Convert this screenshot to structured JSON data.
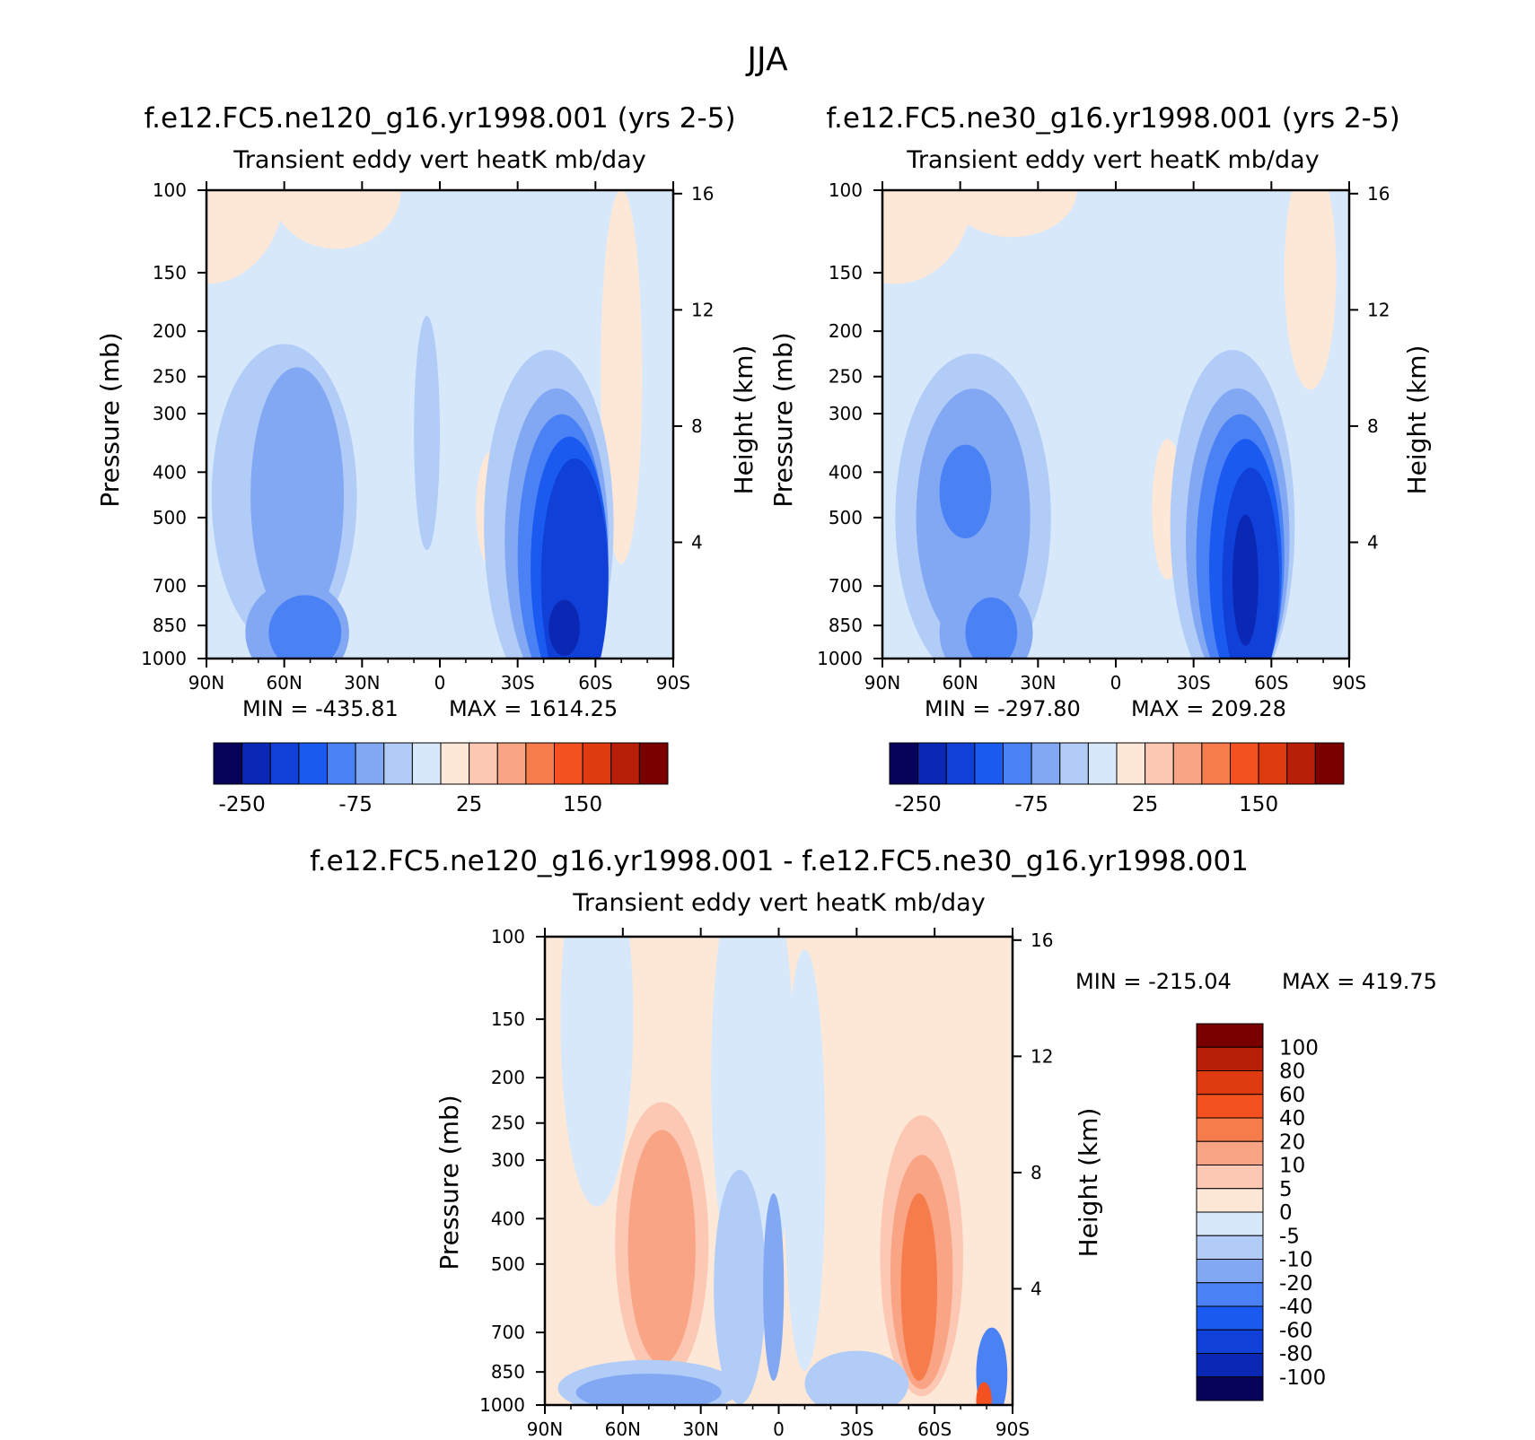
{
  "figure_title": "JJA",
  "colors": {
    "scale16": [
      "#08035a",
      "#0a28b4",
      "#1040d8",
      "#1a5af0",
      "#4a82f5",
      "#82a8f4",
      "#b2ccf8",
      "#d8e8fb",
      "#fde8d8",
      "#fcc8b4",
      "#f9a484",
      "#f77c4c",
      "#f55020",
      "#e03a10",
      "#b81e08",
      "#7a0000"
    ],
    "scale16_diff": [
      "#08035a",
      "#0a28b4",
      "#1040d8",
      "#1a5af0",
      "#4a82f5",
      "#82a8f4",
      "#b2ccf8",
      "#d8e8fb",
      "#fde8d8",
      "#fcc8b4",
      "#f9a484",
      "#f77c4c",
      "#f55020",
      "#e03a10",
      "#b81e08",
      "#7a0000"
    ]
  },
  "chart_data": [
    {
      "type": "heatmap",
      "id": "ne120",
      "title": "f.e12.FC5.ne120_g16.yr1998.001 (yrs 2-5)",
      "subtitle": "Transient eddy vert heatK mb/day",
      "ylabel": "Pressure (mb)",
      "ylabel_right": "Height (km)",
      "x_ticks": [
        "90N",
        "60N",
        "30N",
        "0",
        "30S",
        "60S",
        "90S"
      ],
      "x_range": [
        90,
        -90
      ],
      "y_range": [
        1000,
        100
      ],
      "y_scale": "log",
      "y_ticks": [
        "100",
        "150",
        "200",
        "250",
        "300",
        "400",
        "500",
        "700",
        "850",
        "1000"
      ],
      "y_tick_values": [
        100,
        150,
        200,
        250,
        300,
        400,
        500,
        700,
        850,
        1000
      ],
      "height_ticks": [
        "16",
        "12",
        "8",
        "4"
      ],
      "height_tick_values": [
        16,
        12,
        8,
        4
      ],
      "min_label": "MIN = -435.81",
      "max_label": "MAX = 1614.25",
      "colorbar_labels": [
        "-250",
        "-75",
        "25",
        "150"
      ],
      "background_level": 7,
      "regions": [
        {
          "level": 8,
          "lon": 90,
          "p": 100,
          "w": 30,
          "h": 40
        },
        {
          "level": 8,
          "lon": 40,
          "p": 100,
          "w": 25,
          "h": 25
        },
        {
          "level": 8,
          "lon": -70,
          "p": 250,
          "w": 8,
          "h": 80
        },
        {
          "level": 8,
          "lon": -20,
          "p": 480,
          "w": 6,
          "h": 25
        },
        {
          "level": 6,
          "lon": 60,
          "p": 450,
          "w": 28,
          "h": 65
        },
        {
          "level": 5,
          "lon": 55,
          "p": 450,
          "w": 18,
          "h": 55
        },
        {
          "level": 5,
          "lon": 55,
          "p": 880,
          "w": 20,
          "h": 22
        },
        {
          "level": 4,
          "lon": 52,
          "p": 880,
          "w": 14,
          "h": 16
        },
        {
          "level": 6,
          "lon": 5,
          "p": 330,
          "w": 5,
          "h": 50
        },
        {
          "level": 6,
          "lon": -42,
          "p": 520,
          "w": 25,
          "h": 75
        },
        {
          "level": 5,
          "lon": -45,
          "p": 560,
          "w": 20,
          "h": 65
        },
        {
          "level": 4,
          "lon": -47,
          "p": 600,
          "w": 17,
          "h": 60
        },
        {
          "level": 3,
          "lon": -50,
          "p": 640,
          "w": 15,
          "h": 56
        },
        {
          "level": 2,
          "lon": -52,
          "p": 680,
          "w": 13,
          "h": 52
        },
        {
          "level": 1,
          "lon": -48,
          "p": 860,
          "w": 6,
          "h": 12
        }
      ]
    },
    {
      "type": "heatmap",
      "id": "ne30",
      "title": "f.e12.FC5.ne30_g16.yr1998.001 (yrs 2-5)",
      "subtitle": "Transient eddy vert heatK mb/day",
      "ylabel": "Pressure (mb)",
      "ylabel_right": "Height (km)",
      "x_ticks": [
        "90N",
        "60N",
        "30N",
        "0",
        "30S",
        "60S",
        "90S"
      ],
      "x_range": [
        90,
        -90
      ],
      "y_range": [
        1000,
        100
      ],
      "y_scale": "log",
      "y_ticks": [
        "100",
        "150",
        "200",
        "250",
        "300",
        "400",
        "500",
        "700",
        "850",
        "1000"
      ],
      "y_tick_values": [
        100,
        150,
        200,
        250,
        300,
        400,
        500,
        700,
        850,
        1000
      ],
      "height_ticks": [
        "16",
        "12",
        "8",
        "4"
      ],
      "height_tick_values": [
        16,
        12,
        8,
        4
      ],
      "min_label": "MIN = -297.80",
      "max_label": "MAX = 209.28",
      "colorbar_labels": [
        "-250",
        "-75",
        "25",
        "150"
      ],
      "background_level": 7,
      "regions": [
        {
          "level": 8,
          "lon": 85,
          "p": 100,
          "w": 30,
          "h": 40
        },
        {
          "level": 8,
          "lon": 40,
          "p": 100,
          "w": 25,
          "h": 20
        },
        {
          "level": 8,
          "lon": -75,
          "p": 150,
          "w": 10,
          "h": 50
        },
        {
          "level": 8,
          "lon": -20,
          "p": 480,
          "w": 6,
          "h": 30
        },
        {
          "level": 6,
          "lon": 55,
          "p": 500,
          "w": 30,
          "h": 70
        },
        {
          "level": 5,
          "lon": 55,
          "p": 500,
          "w": 22,
          "h": 55
        },
        {
          "level": 4,
          "lon": 58,
          "p": 440,
          "w": 10,
          "h": 20
        },
        {
          "level": 5,
          "lon": 50,
          "p": 880,
          "w": 18,
          "h": 22
        },
        {
          "level": 4,
          "lon": 48,
          "p": 880,
          "w": 10,
          "h": 15
        },
        {
          "level": 6,
          "lon": -45,
          "p": 520,
          "w": 24,
          "h": 75
        },
        {
          "level": 5,
          "lon": -47,
          "p": 560,
          "w": 20,
          "h": 65
        },
        {
          "level": 4,
          "lon": -48,
          "p": 600,
          "w": 17,
          "h": 60
        },
        {
          "level": 3,
          "lon": -50,
          "p": 640,
          "w": 14,
          "h": 55
        },
        {
          "level": 2,
          "lon": -52,
          "p": 680,
          "w": 11,
          "h": 48
        },
        {
          "level": 1,
          "lon": -50,
          "p": 680,
          "w": 5,
          "h": 28
        }
      ]
    },
    {
      "type": "heatmap",
      "id": "diff",
      "title": "f.e12.FC5.ne120_g16.yr1998.001 - f.e12.FC5.ne30_g16.yr1998.001",
      "subtitle": "Transient eddy vert heatK mb/day",
      "ylabel": "Pressure (mb)",
      "ylabel_right": "Height (km)",
      "x_ticks": [
        "90N",
        "60N",
        "30N",
        "0",
        "30S",
        "60S",
        "90S"
      ],
      "x_range": [
        90,
        -90
      ],
      "y_range": [
        1000,
        100
      ],
      "y_scale": "log",
      "y_ticks": [
        "100",
        "150",
        "200",
        "250",
        "300",
        "400",
        "500",
        "700",
        "850",
        "1000"
      ],
      "y_tick_values": [
        100,
        150,
        200,
        250,
        300,
        400,
        500,
        700,
        850,
        1000
      ],
      "height_ticks": [
        "16",
        "12",
        "8",
        "4"
      ],
      "height_tick_values": [
        16,
        12,
        8,
        4
      ],
      "min_label": "MIN = -215.04",
      "max_label": "MAX = 419.75",
      "colorbar_labels": [
        "100",
        "80",
        "60",
        "40",
        "20",
        "10",
        "5",
        "0",
        "-5",
        "-10",
        "-20",
        "-40",
        "-60",
        "-80",
        "-100"
      ],
      "background_level": 8,
      "regions": [
        {
          "level": 7,
          "lon": 70,
          "p": 150,
          "w": 14,
          "h": 80
        },
        {
          "level": 7,
          "lon": 10,
          "p": 200,
          "w": 16,
          "h": 100
        },
        {
          "level": 7,
          "lon": -10,
          "p": 300,
          "w": 8,
          "h": 90
        },
        {
          "level": 9,
          "lon": 45,
          "p": 450,
          "w": 18,
          "h": 60
        },
        {
          "level": 10,
          "lon": 45,
          "p": 460,
          "w": 13,
          "h": 50
        },
        {
          "level": 9,
          "lon": -55,
          "p": 480,
          "w": 16,
          "h": 60
        },
        {
          "level": 10,
          "lon": -55,
          "p": 520,
          "w": 12,
          "h": 50
        },
        {
          "level": 11,
          "lon": -54,
          "p": 560,
          "w": 7,
          "h": 40
        },
        {
          "level": 6,
          "lon": 15,
          "p": 560,
          "w": 10,
          "h": 50
        },
        {
          "level": 5,
          "lon": 2,
          "p": 560,
          "w": 4,
          "h": 40
        },
        {
          "level": 6,
          "lon": 50,
          "p": 920,
          "w": 35,
          "h": 12
        },
        {
          "level": 5,
          "lon": 50,
          "p": 940,
          "w": 28,
          "h": 8
        },
        {
          "level": 6,
          "lon": -30,
          "p": 900,
          "w": 20,
          "h": 14
        },
        {
          "level": 4,
          "lon": -82,
          "p": 860,
          "w": 6,
          "h": 20
        },
        {
          "level": 12,
          "lon": -79,
          "p": 980,
          "w": 3,
          "h": 8
        }
      ]
    }
  ]
}
